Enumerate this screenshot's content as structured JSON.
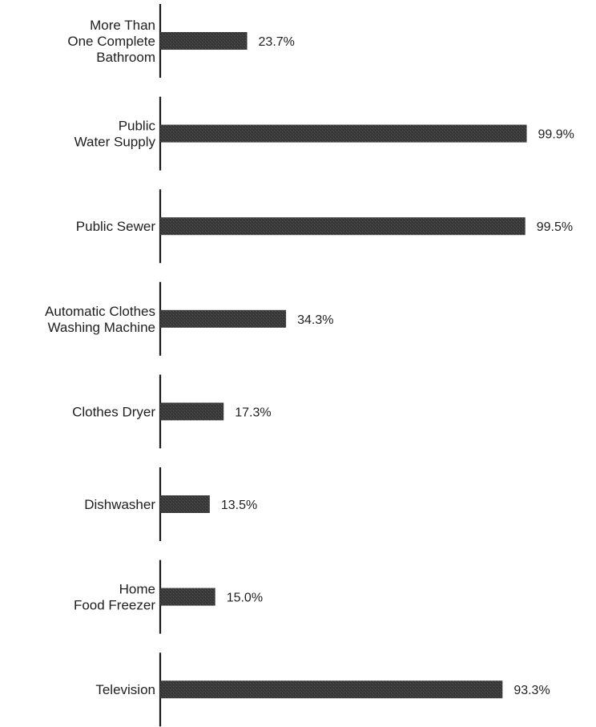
{
  "chart_data": {
    "type": "bar",
    "orientation": "horizontal",
    "categories": [
      [
        "More Than",
        "One Complete",
        "Bathroom"
      ],
      [
        "Public",
        "Water Supply"
      ],
      [
        "Public Sewer"
      ],
      [
        "Automatic Clothes",
        "Washing Machine"
      ],
      [
        "Clothes Dryer"
      ],
      [
        "Dishwasher"
      ],
      [
        "Home",
        "Food Freezer"
      ],
      [
        "Television"
      ]
    ],
    "values": [
      23.7,
      99.9,
      99.5,
      34.3,
      17.3,
      13.5,
      15.0,
      93.3
    ],
    "value_labels": [
      "23.7%",
      "99.9%",
      "99.5%",
      "34.3%",
      "17.3%",
      "13.5%",
      "15.0%",
      "93.3%"
    ],
    "xlim": [
      0,
      100
    ],
    "grid": false,
    "legend": "none",
    "bar_color": "#3a3a3a"
  }
}
